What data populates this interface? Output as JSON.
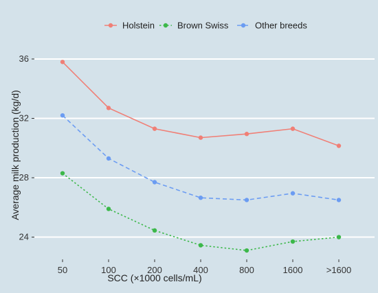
{
  "chart_data": {
    "type": "line",
    "title": "",
    "xlabel": "SCC (×1000 cells/mL)",
    "ylabel": "Average milk production (kg/d)",
    "categories": [
      "50",
      "100",
      "200",
      "400",
      "800",
      "1600",
      ">1600"
    ],
    "ylim": [
      22.5,
      37.2
    ],
    "yticks": [
      24,
      28,
      32,
      36
    ],
    "grid": true,
    "legend_position": "top",
    "series": [
      {
        "name": "Holstein",
        "color": "#f07f76",
        "dash": "solid",
        "values": [
          35.8,
          32.7,
          31.3,
          30.7,
          30.95,
          31.3,
          30.15
        ]
      },
      {
        "name": "Brown Swiss",
        "color": "#3cb84a",
        "dash": "dotted",
        "values": [
          28.3,
          25.9,
          24.45,
          23.45,
          23.1,
          23.7,
          24.0
        ]
      },
      {
        "name": "Other breeds",
        "color": "#6b9cf2",
        "dash": "dashed",
        "values": [
          32.2,
          29.3,
          27.7,
          26.65,
          26.5,
          26.95,
          26.5
        ]
      }
    ]
  }
}
